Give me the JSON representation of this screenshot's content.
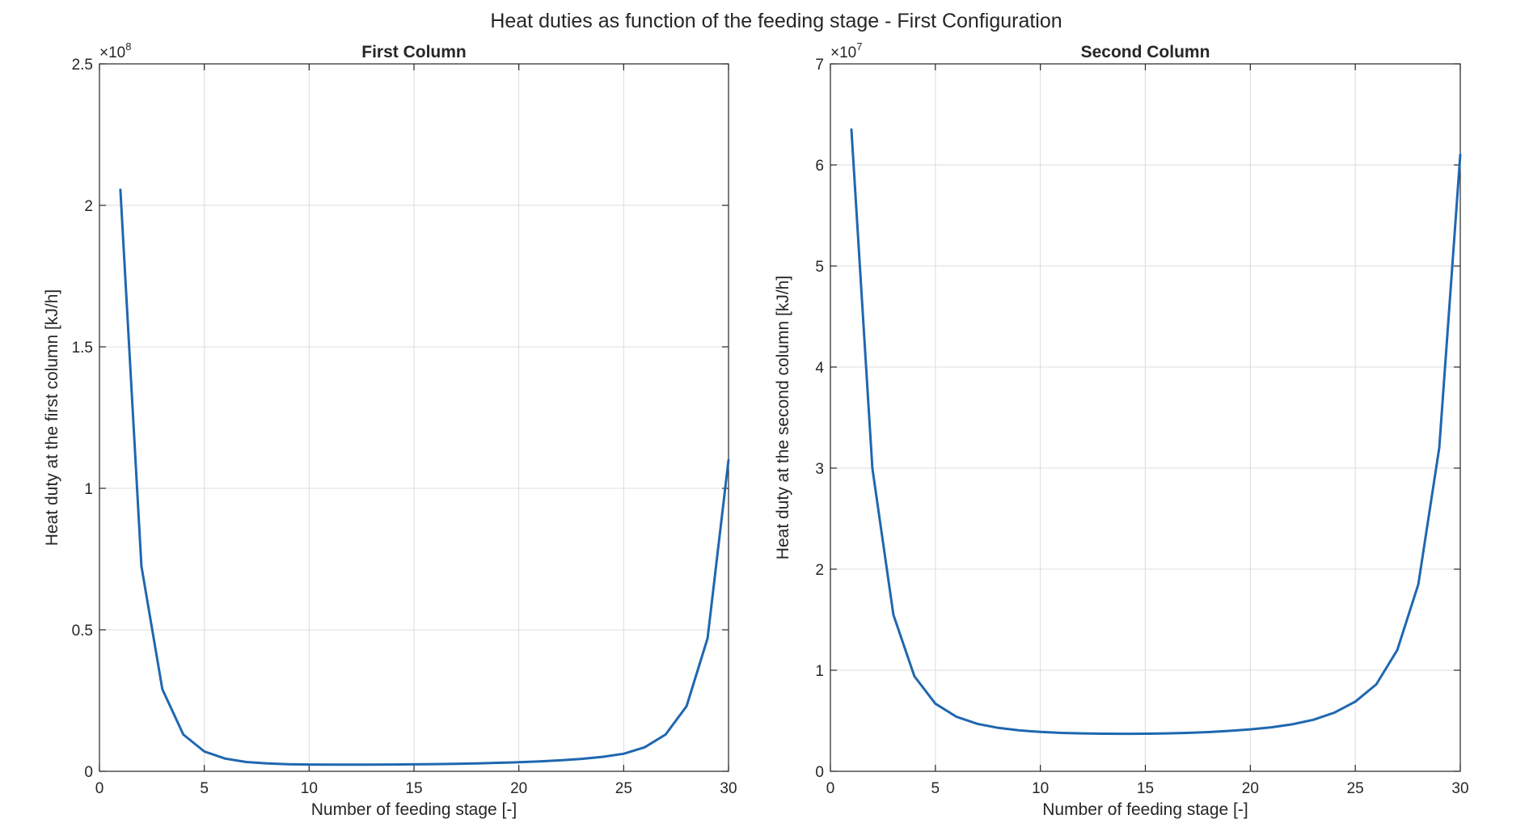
{
  "figure_title": "Heat duties as function of the feeding stage - First Configuration",
  "line_color": "#1f67b0",
  "chart_data": [
    {
      "type": "line",
      "title": "First Column",
      "xlabel": "Number of feeding stage [-]",
      "ylabel": "Heat duty at the first column [kJ/h]",
      "xlim": [
        0,
        30
      ],
      "ylim": [
        0,
        250000000.0
      ],
      "xticks": [
        0,
        5,
        10,
        15,
        20,
        25,
        30
      ],
      "xtick_labels": [
        "0",
        "5",
        "10",
        "15",
        "20",
        "25",
        "30"
      ],
      "yticks": [
        0,
        50000000.0,
        100000000.0,
        150000000.0,
        200000000.0,
        250000000.0
      ],
      "ytick_labels": [
        "0",
        "0.5",
        "1",
        "1.5",
        "2",
        "2.5"
      ],
      "y_multiplier": {
        "base": "×10",
        "exponent": "8"
      },
      "grid": true,
      "series": [
        {
          "x": [
            1,
            2,
            3,
            4,
            5,
            6,
            7,
            8,
            9,
            10,
            11,
            12,
            13,
            14,
            15,
            16,
            17,
            18,
            19,
            20,
            21,
            22,
            23,
            24,
            25,
            26,
            27,
            28,
            29,
            30
          ],
          "values": [
            205500000,
            72500000,
            29000000,
            13000000,
            7000000,
            4500000,
            3300000,
            2800000,
            2500000,
            2400000,
            2350000,
            2350000,
            2350000,
            2400000,
            2450000,
            2550000,
            2650000,
            2800000,
            3000000,
            3200000,
            3500000,
            3900000,
            4400000,
            5100000,
            6200000,
            8500000,
            13000000,
            23000000,
            47000000,
            110000000
          ]
        }
      ]
    },
    {
      "type": "line",
      "title": "Second Column",
      "xlabel": "Number of feeding stage [-]",
      "ylabel": "Heat duty at the second column [kJ/h]",
      "xlim": [
        0,
        30
      ],
      "ylim": [
        0,
        70000000.0
      ],
      "xticks": [
        0,
        5,
        10,
        15,
        20,
        25,
        30
      ],
      "xtick_labels": [
        "0",
        "5",
        "10",
        "15",
        "20",
        "25",
        "30"
      ],
      "yticks": [
        0,
        10000000.0,
        20000000.0,
        30000000.0,
        40000000.0,
        50000000.0,
        60000000.0,
        70000000.0
      ],
      "ytick_labels": [
        "0",
        "1",
        "2",
        "3",
        "4",
        "5",
        "6",
        "7"
      ],
      "y_multiplier": {
        "base": "×10",
        "exponent": "7"
      },
      "grid": true,
      "series": [
        {
          "x": [
            1,
            2,
            3,
            4,
            5,
            6,
            7,
            8,
            9,
            10,
            11,
            12,
            13,
            14,
            15,
            16,
            17,
            18,
            19,
            20,
            21,
            22,
            23,
            24,
            25,
            26,
            27,
            28,
            29,
            30
          ],
          "values": [
            63500000,
            30000000,
            15500000,
            9400000,
            6700000,
            5400000,
            4700000,
            4300000,
            4050000,
            3900000,
            3800000,
            3750000,
            3720000,
            3710000,
            3720000,
            3750000,
            3800000,
            3880000,
            4000000,
            4150000,
            4350000,
            4650000,
            5100000,
            5800000,
            6900000,
            8600000,
            12000000,
            18500000,
            32000000,
            61000000
          ]
        }
      ]
    }
  ]
}
